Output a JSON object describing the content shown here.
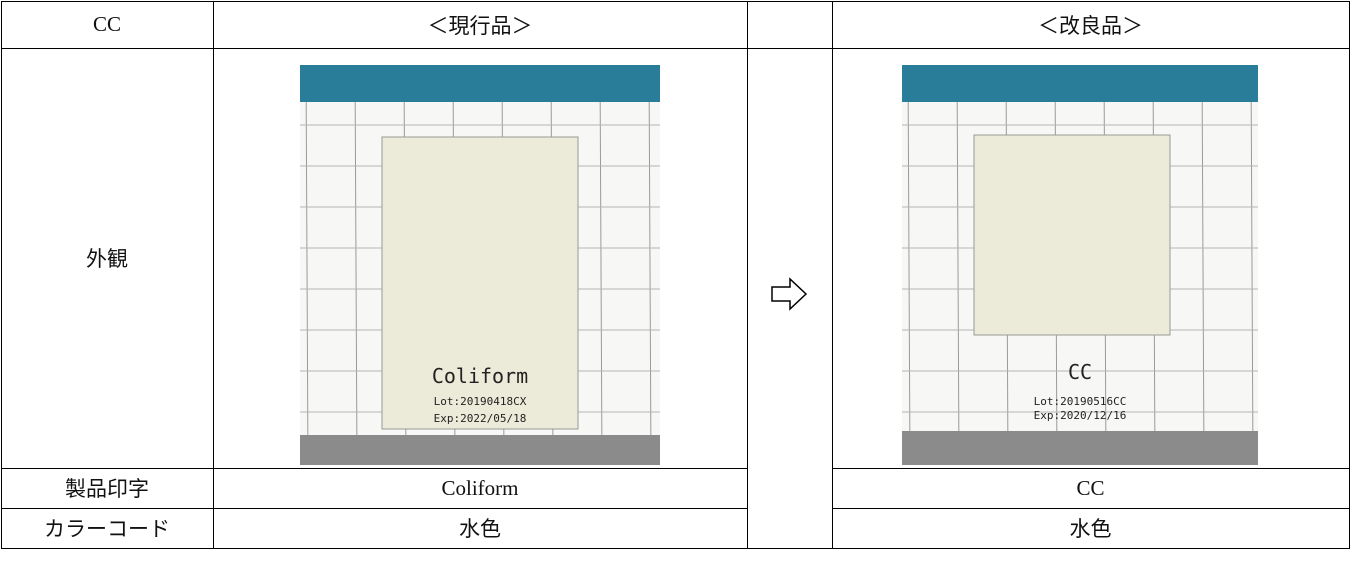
{
  "table": {
    "header": {
      "label": "CC",
      "current": "＜現行品＞",
      "improved": "＜改良品＞"
    },
    "rows": [
      {
        "label": "外観"
      },
      {
        "label": "製品印字",
        "current": "Coliform",
        "improved": "CC"
      },
      {
        "label": "カラーコード",
        "current": "水色",
        "improved": "水色"
      }
    ]
  },
  "photos": {
    "current": {
      "name": "Coliform",
      "lot": "Lot:20190418CX",
      "exp": "Exp:2022/05/18"
    },
    "improved": {
      "name": "CC",
      "lot": "Lot:20190516CC",
      "exp": "Exp:2020/12/16"
    }
  }
}
